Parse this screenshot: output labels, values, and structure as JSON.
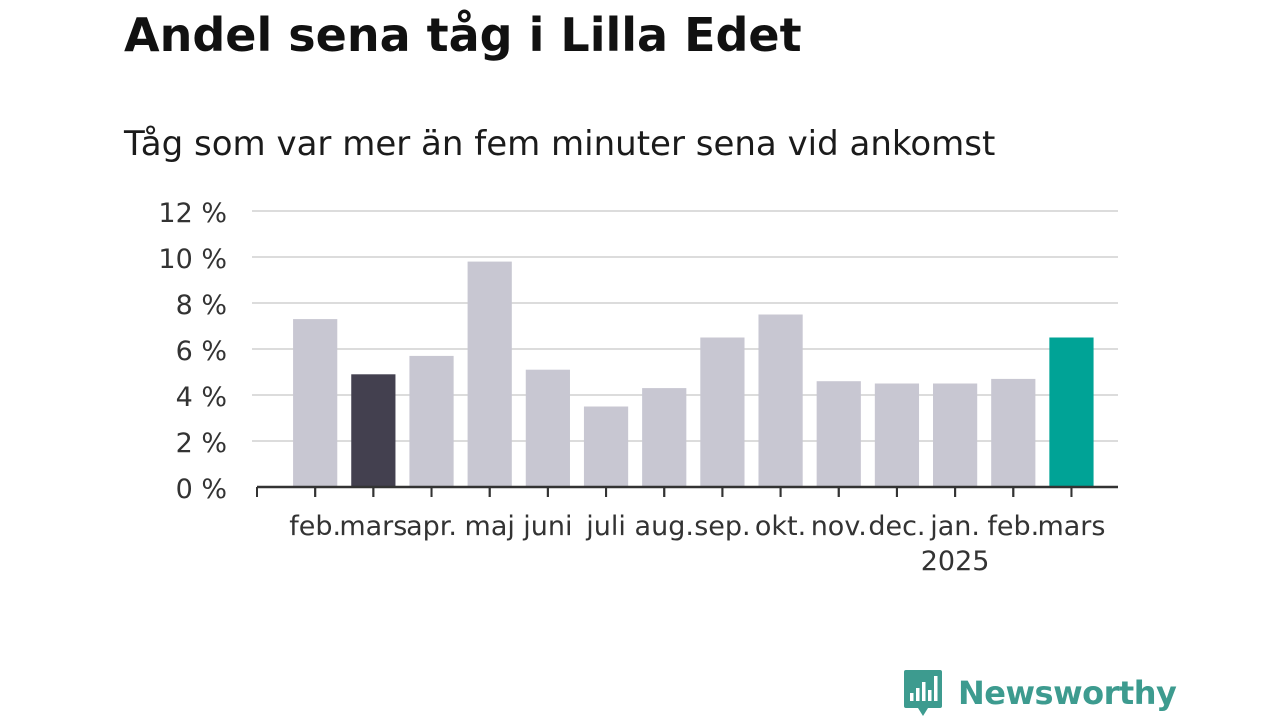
{
  "title": "Andel sena tåg i Lilla Edet",
  "subtitle": "Tåg som var mer än fem minuter sena vid ankomst",
  "brand": {
    "name": "Newsworthy",
    "color": "#3d9b8f"
  },
  "colors": {
    "bar_default": "#c8c7d2",
    "bar_highlight_prev_year": "#43404f",
    "bar_current": "#00a396",
    "grid": "#dcdcdc",
    "axis": "#333333",
    "text": "#333333"
  },
  "chart_data": {
    "type": "bar",
    "categories": [
      "feb.",
      "mars",
      "apr.",
      "maj",
      "juni",
      "juli",
      "aug.",
      "sep.",
      "okt.",
      "nov.",
      "dec.",
      "jan.",
      "feb.",
      "mars"
    ],
    "category_labels": [
      "feb.",
      "mars",
      "apr.",
      "maj",
      "juni",
      "juli",
      "aug.",
      "sep.",
      "okt.",
      "nov.",
      "dec.",
      "jan.",
      "feb.",
      "mars"
    ],
    "year_labels": [
      {
        "category_index": 11,
        "text": "2025"
      }
    ],
    "values": [
      7.3,
      4.9,
      5.7,
      9.8,
      5.1,
      3.5,
      4.3,
      6.5,
      7.5,
      4.6,
      4.5,
      4.5,
      4.7,
      6.5
    ],
    "highlight": {
      "previous_year_index": 1,
      "current_index": 13
    },
    "ylim": [
      0,
      12
    ],
    "yticks": [
      0,
      2,
      4,
      6,
      8,
      10,
      12
    ],
    "ytick_labels": [
      "0 %",
      "2 %",
      "4 %",
      "6 %",
      "8 %",
      "10 %",
      "12 %"
    ],
    "xlabel": "",
    "ylabel": "",
    "grid": true,
    "legend": "none"
  }
}
